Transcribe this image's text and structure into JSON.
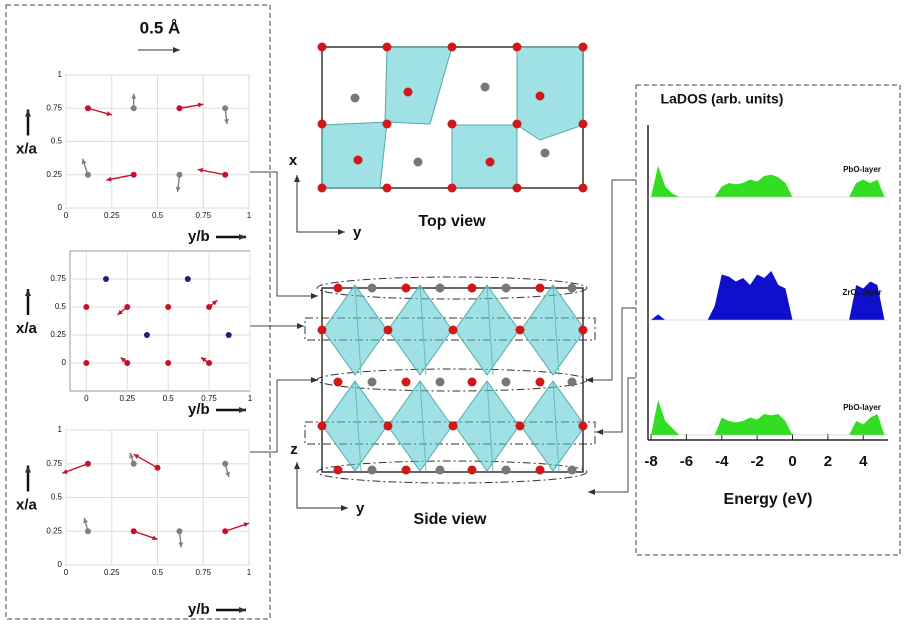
{
  "scale_label": "0.5 Å",
  "displacement_panels": [
    {
      "type": "scatter",
      "xlabel": "y/b",
      "ylabel": "x/a",
      "xlim": [
        0,
        1
      ],
      "ylim": [
        0,
        1
      ],
      "xticks": [
        0,
        0.25,
        0.5,
        0.75,
        1
      ],
      "yticks": [
        0,
        0.25,
        0.5,
        0.75,
        1
      ],
      "atoms": {
        "x": [
          0.12,
          0.37,
          0.62,
          0.87,
          0.12,
          0.37,
          0.62,
          0.87
        ],
        "y": [
          0.75,
          0.75,
          0.75,
          0.75,
          0.25,
          0.25,
          0.25,
          0.25
        ],
        "dx": [
          0.13,
          0,
          0.13,
          0.01,
          -0.03,
          -0.15,
          -0.01,
          -0.15
        ],
        "dy": [
          -0.05,
          0.11,
          0.03,
          -0.12,
          0.12,
          -0.04,
          -0.13,
          0.04
        ],
        "colors": [
          "#c8102e",
          "#808080",
          "#c8102e",
          "#808080",
          "#808080",
          "#c8102e",
          "#808080",
          "#c8102e"
        ]
      }
    },
    {
      "type": "scatter",
      "xlabel": "y/b",
      "ylabel": "x/a",
      "xlim": [
        -0.1,
        1
      ],
      "ylim": [
        -0.25,
        1
      ],
      "xticks": [
        0,
        0.25,
        0.5,
        0.75,
        1
      ],
      "yticks": [
        0,
        0.25,
        0.5,
        0.75
      ],
      "atoms": {
        "x": [
          0,
          0,
          0.12,
          0.25,
          0.37,
          0.5,
          0.5,
          0.62,
          0.75,
          0.87,
          0.25,
          0.75
        ],
        "y": [
          0.5,
          0,
          0.75,
          0.5,
          0.25,
          0.5,
          0,
          0.75,
          0.5,
          0.25,
          0,
          0
        ],
        "dx": [
          0,
          0,
          0,
          -0.06,
          0,
          0,
          0,
          0,
          0.05,
          0,
          -0.04,
          -0.05
        ],
        "dy": [
          0,
          0,
          0,
          -0.07,
          0,
          0,
          0,
          0,
          0.06,
          0,
          0.05,
          0.05
        ],
        "colors": [
          "#c8102e",
          "#c8102e",
          "#1a237e",
          "#c8102e",
          "#1a237e",
          "#c8102e",
          "#c8102e",
          "#1a237e",
          "#c8102e",
          "#1a237e",
          "#c8102e",
          "#c8102e"
        ]
      }
    },
    {
      "type": "scatter",
      "xlabel": "y/b",
      "ylabel": "x/a",
      "xlim": [
        0,
        1
      ],
      "ylim": [
        0,
        1
      ],
      "xticks": [
        0,
        0.25,
        0.5,
        0.75,
        1
      ],
      "yticks": [
        0,
        0.25,
        0.5,
        0.75,
        1
      ],
      "atoms": {
        "x": [
          0.12,
          0.37,
          0.5,
          0.87,
          0.12,
          0.37,
          0.62,
          0.87
        ],
        "y": [
          0.75,
          0.75,
          0.72,
          0.75,
          0.25,
          0.25,
          0.25,
          0.25
        ],
        "dx": [
          -0.14,
          -0.02,
          -0.13,
          0.02,
          -0.02,
          0.13,
          0.01,
          0.13
        ],
        "dy": [
          -0.07,
          0.08,
          0.1,
          -0.1,
          0.1,
          -0.06,
          -0.12,
          0.06
        ],
        "colors": [
          "#c8102e",
          "#808080",
          "#c8102e",
          "#808080",
          "#808080",
          "#c8102e",
          "#808080",
          "#c8102e"
        ]
      }
    }
  ],
  "structure": {
    "top_axis_x": "x",
    "top_axis_y": "y",
    "top_caption": "Top view",
    "side_axis_z": "z",
    "side_axis_y": "y",
    "side_caption": "Side view"
  },
  "dos": {
    "title": "LaDOS (arb. units)",
    "xlabel": "Energy (eV)",
    "xlim": [
      -8.2,
      5.4
    ],
    "ylim": [
      0,
      1
    ],
    "xticks": [
      -8,
      -6,
      -4,
      -2,
      0,
      2,
      4
    ],
    "x": [
      -8,
      -7.6,
      -7.2,
      -6.8,
      -6.4,
      -6,
      -5.6,
      -5.2,
      -4.8,
      -4.4,
      -4,
      -3.6,
      -3.2,
      -2.8,
      -2.4,
      -2,
      -1.6,
      -1.2,
      -0.8,
      -0.4,
      0,
      0.4,
      0.8,
      1.2,
      1.6,
      2,
      2.4,
      2.8,
      3.2,
      3.6,
      4,
      4.4,
      4.8,
      5.2
    ],
    "panels": [
      {
        "name": "PbO-layer",
        "color": "#33dd22",
        "values": [
          0,
          0.45,
          0.15,
          0.05,
          0,
          0,
          0,
          0,
          0,
          0,
          0.15,
          0.2,
          0.18,
          0.2,
          0.25,
          0.22,
          0.3,
          0.32,
          0.28,
          0.2,
          0,
          0,
          0,
          0,
          0,
          0,
          0,
          0,
          0,
          0.2,
          0.25,
          0.2,
          0.25,
          0
        ]
      },
      {
        "name": "ZrO₂-layer",
        "color": "#1010cc",
        "values": [
          0,
          0.08,
          0,
          0,
          0,
          0,
          0,
          0,
          0,
          0.2,
          0.65,
          0.62,
          0.55,
          0.6,
          0.5,
          0.65,
          0.6,
          0.7,
          0.5,
          0.45,
          0,
          0,
          0,
          0,
          0,
          0,
          0,
          0,
          0,
          0.5,
          0.45,
          0.55,
          0.5,
          0
        ]
      },
      {
        "name": "PbO-layer",
        "color": "#33dd22",
        "values": [
          0,
          0.5,
          0.2,
          0.1,
          0,
          0,
          0,
          0,
          0,
          0,
          0.25,
          0.2,
          0.18,
          0.2,
          0.25,
          0.22,
          0.3,
          0.28,
          0.3,
          0.2,
          0,
          0,
          0,
          0,
          0,
          0,
          0,
          0,
          0,
          0.2,
          0.15,
          0.25,
          0.3,
          0
        ]
      }
    ]
  }
}
